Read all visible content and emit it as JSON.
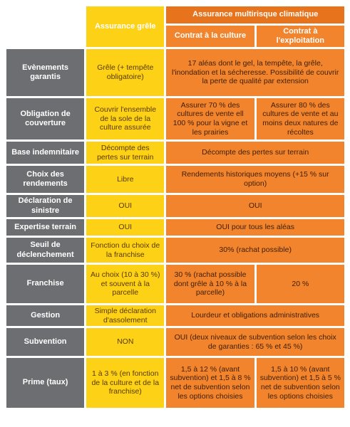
{
  "header": {
    "grele": "Assurance grêle",
    "multirisque": "Assurance multirisque climatique",
    "culture": "Contrat à la culture",
    "exploitation": "Contrat à l'exploitation"
  },
  "rows": [
    {
      "label": "Evènements garantis",
      "cells": [
        "Grêle (+ tempête obligatoire)",
        "17 aléas dont le gel, la tempête, la grêle, l'inondation et la sécheresse. Possibilité de couvrir la perte de qualité par extension"
      ]
    },
    {
      "label": "Obligation de couverture",
      "cells": [
        "Couvrir l'ensemble de la sole de la culture assurée",
        "Assurer 70 % des cultures de vente ell 100 % pour la vigne et les prairies",
        "Assurer 80 % des cultures de vente et au moins deux natures de récoltes"
      ]
    },
    {
      "label": "Base indemnitaire",
      "cells": [
        "Décompte des pertes sur terrain",
        "Décompte des pertes sur terrain"
      ]
    },
    {
      "label": "Choix des rendements",
      "cells": [
        "Libre",
        "Rendements historiques moyens (+15 % sur option)"
      ]
    },
    {
      "label": "Déclaration de sinistre",
      "cells": [
        "OUI",
        "OUI"
      ]
    },
    {
      "label": "Expertise terrain",
      "cells": [
        "OUI",
        "OUI pour tous les aléas"
      ]
    },
    {
      "label": "Seuil de déclenchement",
      "cells": [
        "Fonction du choix de la franchise",
        "30% (rachat possible)"
      ]
    },
    {
      "label": "Franchise",
      "cells": [
        "Au choix (10 à 30 %) et souvent à la parcelle",
        "30 % (rachat possible dont grêle à 10 % à la parcelle)",
        "20 %"
      ]
    },
    {
      "label": "Gestion",
      "cells": [
        "Simple déclaration d'assolement",
        "Lourdeur et obligations administratives"
      ]
    },
    {
      "label": "Subvention",
      "cells": [
        "NON",
        "OUI (deux niveaux de subvention selon les choix de garanties : 65 % et 45 %)"
      ]
    },
    {
      "label": "Prime (taux)",
      "cells": [
        "1 à 3 % (en fonction de la culture et de la franchise)",
        "1,5 à 12 % (avant subvention) et 1,5 à 8 % net de subvention selon les options choisies",
        "1,5 à 10 % (avant subvention) et 1,5 à 5 % net de subvention selon les options choisies"
      ]
    }
  ]
}
